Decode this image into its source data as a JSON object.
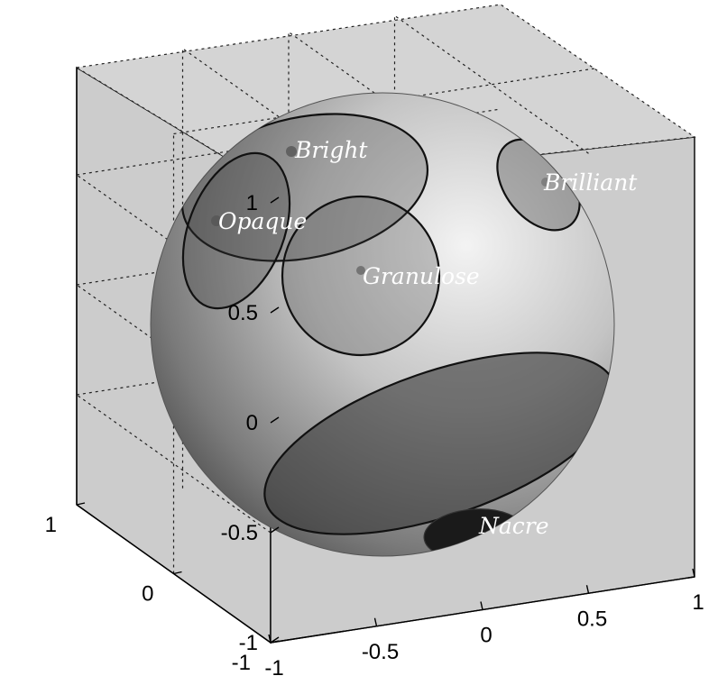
{
  "chart_data": {
    "type": "3d-surface",
    "title": "",
    "xlabel": "",
    "ylabel": "",
    "zlabel": "",
    "grid": true,
    "surface": "unit-sphere",
    "axes": {
      "x": {
        "range": [
          -1,
          1
        ],
        "ticks": [
          -1,
          -0.5,
          0,
          0.5,
          1
        ],
        "tick_labels": [
          "-1",
          "-0.5",
          "0",
          "0.5",
          "1"
        ]
      },
      "y": {
        "range": [
          -1,
          1
        ],
        "ticks": [
          -1,
          0,
          1
        ],
        "tick_labels": [
          "-1",
          "0",
          "1"
        ]
      },
      "z": {
        "range": [
          -1,
          1
        ],
        "ticks": [
          -1,
          -0.5,
          0,
          0.5,
          1
        ],
        "tick_labels": [
          "-1",
          "-0.5",
          "0",
          "0.5",
          "1"
        ]
      }
    },
    "regions": [
      {
        "name": "Bright",
        "label": "Bright"
      },
      {
        "name": "Opaque",
        "label": "Opaque"
      },
      {
        "name": "Granulose",
        "label": "Granulose"
      },
      {
        "name": "Brilliant",
        "label": "Brilliant"
      },
      {
        "name": "Nacre",
        "label": "Nacre"
      }
    ],
    "colors": {
      "pane": "#cccccc",
      "sphere_light": "#efefef",
      "sphere_dark": "#5a5a5a",
      "region_fill": "#3a3a3a",
      "nacre_core": "#1a1a1a"
    }
  }
}
